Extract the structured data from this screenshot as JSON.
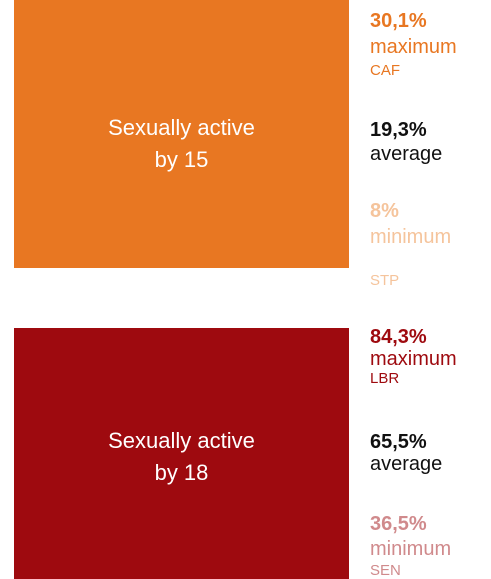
{
  "panels": [
    {
      "lines": [
        "Sexually active",
        "by 15"
      ],
      "color": "#e87722",
      "stats": [
        {
          "value": "30,1%",
          "label": "maximum",
          "country": "CAF",
          "color": "#e87722"
        },
        {
          "value": "19,3%",
          "label": "average",
          "color": "#111111"
        },
        {
          "value": "8%",
          "label": "minimum",
          "country": "STP",
          "color": "#f5c49c"
        }
      ]
    },
    {
      "lines": [
        "Sexually active",
        "by 18"
      ],
      "color": "#9e0a0f",
      "stats": [
        {
          "value": "84,3%",
          "label": "maximum",
          "country": "LBR",
          "color": "#9e0a0f"
        },
        {
          "value": "65,5%",
          "label": "average",
          "color": "#111111"
        },
        {
          "value": "36,5%",
          "label": "minimum",
          "country": "SEN",
          "color": "#d08a8c"
        }
      ]
    }
  ]
}
